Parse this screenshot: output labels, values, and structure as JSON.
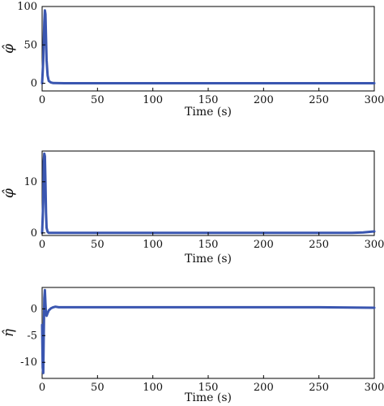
{
  "chart_data": [
    {
      "type": "line",
      "ylabel": "φ̂",
      "xlabel": "Time (s)",
      "xlim": [
        0,
        300
      ],
      "ylim": [
        -10,
        100
      ],
      "xticks": [
        "0",
        "50",
        "100",
        "150",
        "200",
        "250",
        "300"
      ],
      "yticks": [
        "0",
        "50",
        "100"
      ],
      "grid": false,
      "series": [
        {
          "color": "#3a56b0",
          "x": [
            0,
            1,
            2,
            2.5,
            3,
            3.5,
            4,
            5,
            6,
            8,
            10,
            20,
            50,
            100,
            150,
            200,
            250,
            300
          ],
          "y": [
            0,
            30,
            80,
            95,
            90,
            60,
            30,
            10,
            3,
            1,
            0.3,
            0,
            0,
            0,
            0,
            0,
            0,
            0
          ]
        }
      ]
    },
    {
      "type": "line",
      "ylabel": "φ̂",
      "xlabel": "Time (s)",
      "xlim": [
        0,
        300
      ],
      "ylim": [
        -0.5,
        16
      ],
      "xticks": [
        "0",
        "50",
        "100",
        "150",
        "200",
        "250",
        "300"
      ],
      "yticks": [
        "0",
        "10"
      ],
      "grid": false,
      "series": [
        {
          "color": "#3a56b0",
          "x": [
            0,
            1,
            1.5,
            2,
            2.5,
            3,
            3.5,
            4,
            5,
            6,
            10,
            50,
            100,
            150,
            200,
            250,
            280,
            290,
            300
          ],
          "y": [
            0,
            6,
            14,
            15.5,
            15,
            10,
            4,
            1,
            0.2,
            0,
            0,
            0,
            0,
            0,
            0,
            0,
            0,
            0.1,
            0.3
          ]
        }
      ]
    },
    {
      "type": "line",
      "ylabel": "η̂",
      "xlabel": "Time (s)",
      "xlim": [
        0,
        300
      ],
      "ylim": [
        -13,
        4
      ],
      "xticks": [
        "0",
        "50",
        "100",
        "150",
        "200",
        "250",
        "300"
      ],
      "yticks": [
        "-10",
        "-5",
        "0"
      ],
      "grid": false,
      "series": [
        {
          "color": "#3a56b0",
          "x": [
            0,
            0.5,
            1,
            1.5,
            2,
            2.5,
            3,
            3.5,
            4,
            5,
            6,
            8,
            10,
            12,
            15,
            20,
            50,
            100,
            150,
            200,
            250,
            300
          ],
          "y": [
            -3,
            -11,
            -12,
            -5,
            2,
            3.5,
            1,
            -1,
            -1.3,
            -0.8,
            -0.3,
            0.1,
            0.3,
            0.4,
            0.3,
            0.3,
            0.3,
            0.3,
            0.3,
            0.3,
            0.3,
            0.2
          ]
        }
      ]
    }
  ]
}
